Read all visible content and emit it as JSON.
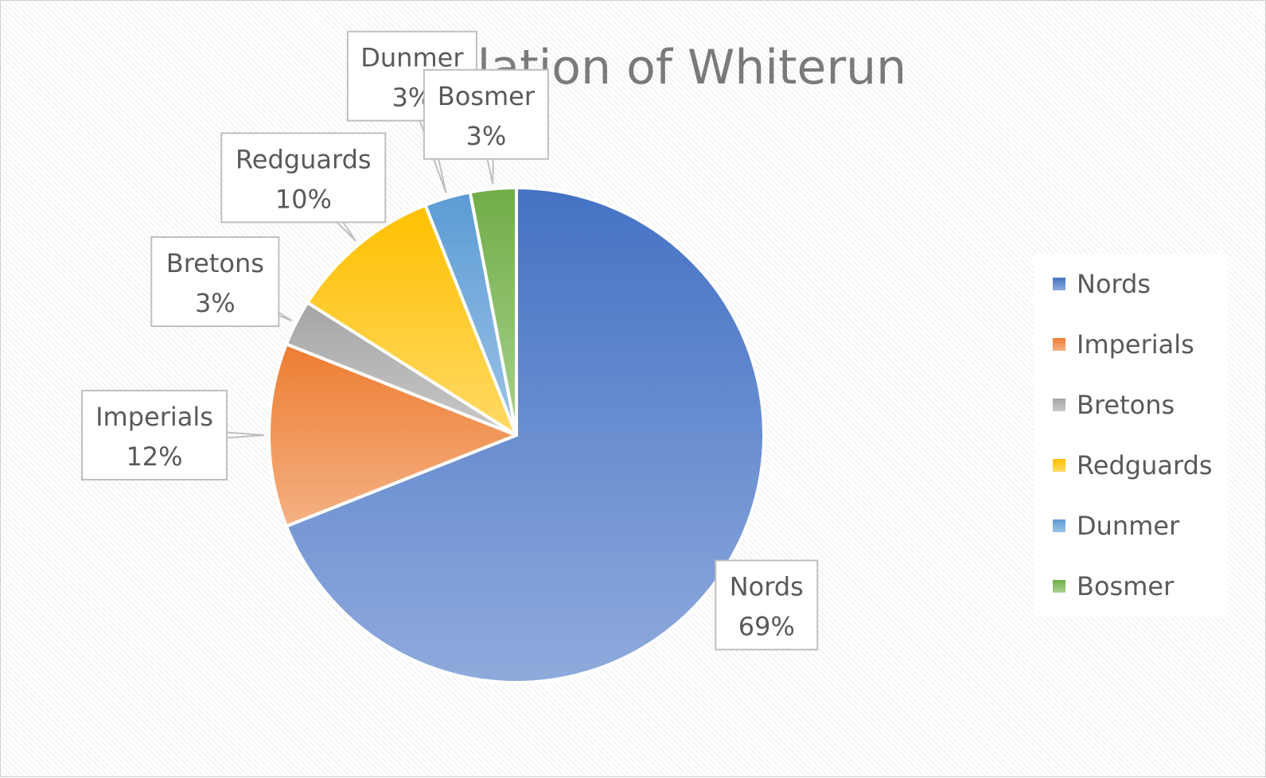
{
  "chart_data": {
    "type": "pie",
    "title": "Population of Whiterun",
    "categories": [
      "Nords",
      "Imperials",
      "Bretons",
      "Redguards",
      "Dunmer",
      "Bosmer"
    ],
    "values": [
      69,
      12,
      3,
      10,
      3,
      3
    ],
    "labels": [
      "69%",
      "12%",
      "3%",
      "10%",
      "3%",
      "3%"
    ],
    "colors": [
      "#4472C4",
      "#ED7D31",
      "#A5A5A5",
      "#FFC000",
      "#5B9BD5",
      "#70AD47"
    ],
    "colors_light": [
      "#8FAADC",
      "#F4B183",
      "#C9C9C9",
      "#FFD966",
      "#9DC3E6",
      "#A9D18E"
    ],
    "legend_position": "right",
    "data_labels": "category-and-percentage-callouts"
  }
}
